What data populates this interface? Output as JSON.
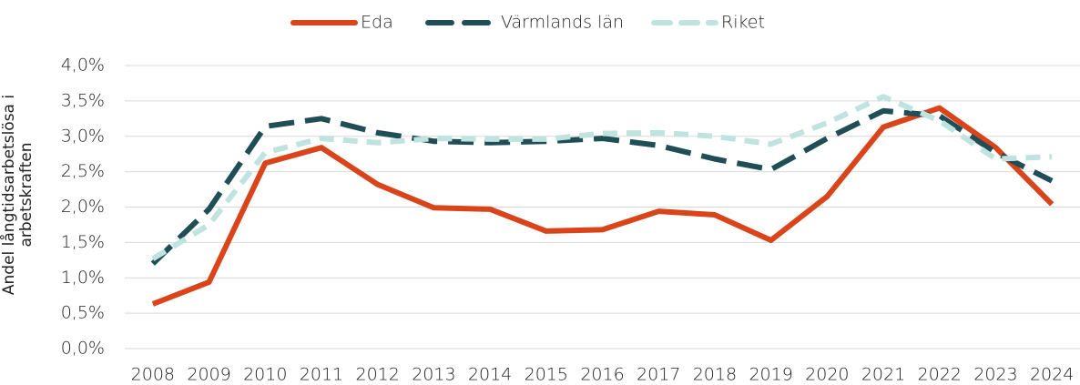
{
  "chart_data": {
    "type": "line",
    "y_label": "Andel långtidsarbetslösa i arbetskraften",
    "categories": [
      "2008",
      "2009",
      "2010",
      "2011",
      "2012",
      "2013",
      "2014",
      "2015",
      "2016",
      "2017",
      "2018",
      "2019",
      "2020",
      "2021",
      "2022",
      "2023",
      "2024"
    ],
    "series": [
      {
        "name": "Eda",
        "color": "#d9441a",
        "dash": "none",
        "values": [
          0.63,
          0.94,
          2.62,
          2.84,
          2.32,
          1.99,
          1.97,
          1.66,
          1.68,
          1.94,
          1.89,
          1.53,
          2.15,
          3.13,
          3.4,
          2.84,
          2.04
        ]
      },
      {
        "name": "Värmlands län",
        "color": "#1f4e56",
        "dash": "28 12",
        "values": [
          1.2,
          1.97,
          3.14,
          3.25,
          3.05,
          2.93,
          2.91,
          2.93,
          2.97,
          2.87,
          2.68,
          2.53,
          2.97,
          3.36,
          3.29,
          2.77,
          2.37
        ]
      },
      {
        "name": "Riket",
        "color": "#bfe3df",
        "dash": "16 10",
        "values": [
          1.27,
          1.75,
          2.77,
          2.97,
          2.91,
          2.97,
          2.96,
          2.96,
          3.04,
          3.05,
          3.0,
          2.89,
          3.19,
          3.56,
          3.22,
          2.68,
          2.71
        ]
      }
    ],
    "ylim": [
      0,
      4
    ],
    "yticks": [
      {
        "value": 0,
        "label": "0,0%"
      },
      {
        "value": 0.5,
        "label": "0,5%"
      },
      {
        "value": 1,
        "label": "1,0%"
      },
      {
        "value": 1.5,
        "label": "1,5%"
      },
      {
        "value": 2,
        "label": "2,0%"
      },
      {
        "value": 2.5,
        "label": "2,5%"
      },
      {
        "value": 3,
        "label": "3,0%"
      },
      {
        "value": 3.5,
        "label": "3,5%"
      },
      {
        "value": 4,
        "label": "4,0%"
      }
    ],
    "grid": true,
    "legend": "top"
  }
}
